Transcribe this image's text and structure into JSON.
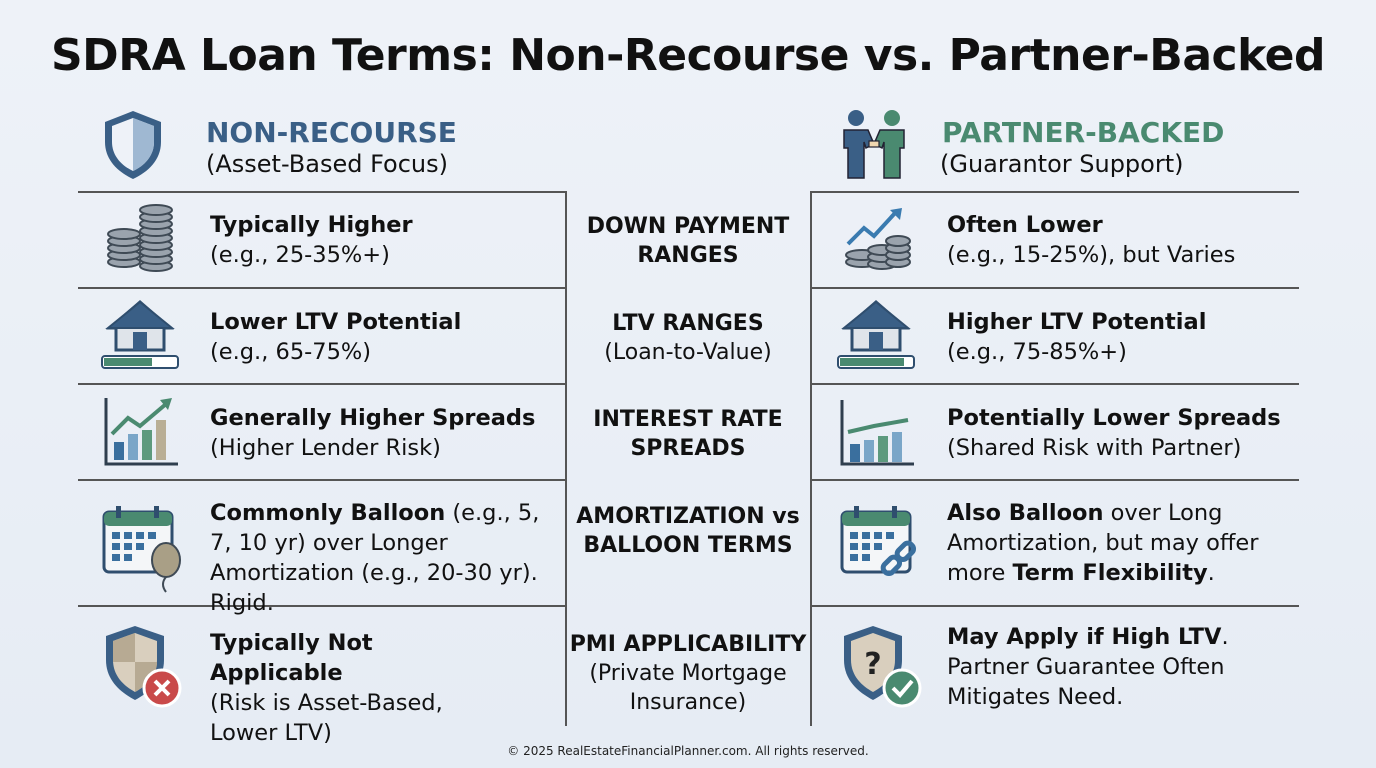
{
  "title": "SDRA Loan Terms: Non-Recourse vs. Partner-Backed",
  "left_header": {
    "name": "NON-RECOURSE",
    "sub": "(Asset-Based Focus)",
    "icon": "shield-icon"
  },
  "right_header": {
    "name": "PARTNER-BACKED",
    "sub": "(Guarantor Support)",
    "icon": "handshake-people-icon"
  },
  "rows": [
    {
      "center": {
        "strong": "DOWN PAYMENT RANGES",
        "sub": ""
      },
      "left": {
        "icon": "coin-stacks-icon",
        "bold": "Typically Higher",
        "rest": "(e.g., 25-35%+)"
      },
      "right": {
        "icon": "coins-growth-arrow-icon",
        "bold": "Often Lower",
        "rest": "(e.g., 15-25%), but Varies"
      }
    },
    {
      "center": {
        "strong": "LTV RANGES",
        "sub": "(Loan-to-Value)"
      },
      "left": {
        "icon": "house-progress-icon",
        "bold": "Lower LTV Potential",
        "rest": "(e.g., 65-75%)"
      },
      "right": {
        "icon": "house-progress-icon",
        "bold": "Higher LTV Potential",
        "rest": "(e.g., 75-85%+)"
      }
    },
    {
      "center": {
        "strong": "INTEREST RATE SPREADS",
        "sub": ""
      },
      "left": {
        "icon": "bar-chart-up-arrow-icon",
        "bold": "Generally Higher Spreads",
        "rest": "(Higher Lender Risk)"
      },
      "right": {
        "icon": "bar-chart-flat-icon",
        "bold": "Potentially Lower Spreads",
        "rest": "(Shared Risk with Partner)"
      }
    },
    {
      "center": {
        "strong": "AMORTIZATION vs BALLOON TERMS",
        "sub": ""
      },
      "left": {
        "icon": "calendar-balloon-icon",
        "bold": "Commonly Balloon",
        "rest": " (e.g., 5, 7, 10 yr) over Longer Amortization (e.g., 20-30 yr). Rigid."
      },
      "right": {
        "icon": "calendar-link-icon",
        "bold": "Also Balloon",
        "rest": " over Long Amortization, but may offer more ",
        "bold2": "Term Flexibility",
        "rest2": "."
      }
    },
    {
      "center": {
        "strong": "PMI APPLICABILITY",
        "sub": "(Private Mortgage Insurance)"
      },
      "left": {
        "icon": "shield-x-icon",
        "bold": "Typically Not Applicable",
        "rest": "(Risk is Asset-Based, Lower LTV)"
      },
      "right": {
        "icon": "shield-question-check-icon",
        "bold": "May Apply if High LTV",
        "rest": ". Partner Guarantee Often Mitigates Need."
      }
    }
  ],
  "footer": "© 2025 RealEstateFinancialPlanner.com. All rights reserved.",
  "colors": {
    "blue": "#3a5f86",
    "green": "#4a8a70",
    "line": "#555555"
  }
}
